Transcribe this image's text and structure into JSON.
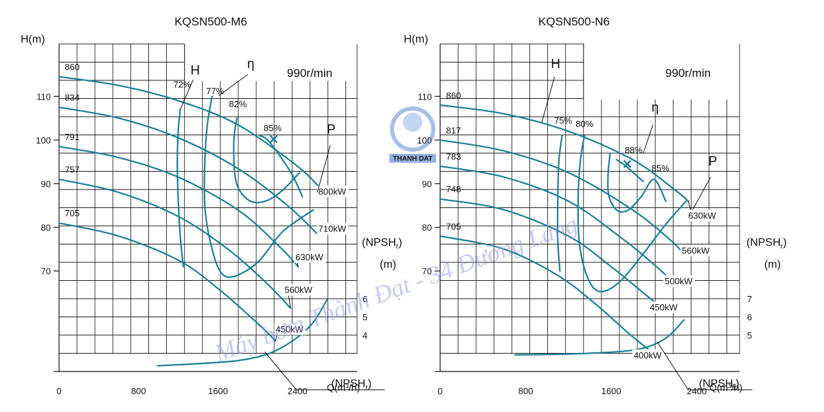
{
  "curve_color": "#1a7f99",
  "watermark": {
    "text": "Máy bơm Thành Đạt - 34 Đường Láng",
    "logo_text": "THANH DAT",
    "logo_color": "#3b73c9"
  },
  "chart_data": [
    {
      "type": "line",
      "title": "KQSN500-M6",
      "ylabel": "H(m)",
      "xlabel": "Q(m³/h)",
      "npsh_axis_label": "(NPSHr)",
      "npsh_unit": "(m)",
      "speed_label": "990r/min",
      "xlim": [
        0,
        3000
      ],
      "ylim": [
        47,
        122
      ],
      "x_ticks": [
        "0",
        "800",
        "1600",
        "2400"
      ],
      "y_ticks": [
        "70",
        "80",
        "90",
        "100",
        "110"
      ],
      "npsh_ticks": [
        "4",
        "5",
        "6"
      ],
      "head_curves": [
        {
          "name": "860",
          "points": [
            [
              0,
              114.5
            ],
            [
              600,
              112.5
            ],
            [
              1200,
              109
            ],
            [
              1800,
              103.5
            ],
            [
              2400,
              94
            ],
            [
              2650,
              88.5
            ]
          ]
        },
        {
          "name": "834",
          "points": [
            [
              0,
              107.5
            ],
            [
              600,
              105
            ],
            [
              1200,
              100.5
            ],
            [
              1800,
              93.5
            ],
            [
              2300,
              85
            ],
            [
              2600,
              78.5
            ]
          ]
        },
        {
          "name": "791",
          "points": [
            [
              0,
              98.5
            ],
            [
              600,
              96
            ],
            [
              1200,
              91.5
            ],
            [
              1800,
              84
            ],
            [
              2200,
              76
            ],
            [
              2410,
              71
            ]
          ]
        },
        {
          "name": "757",
          "points": [
            [
              0,
              91
            ],
            [
              600,
              88
            ],
            [
              1200,
              82.5
            ],
            [
              1700,
              75
            ],
            [
              2100,
              67
            ],
            [
              2330,
              61.5
            ]
          ]
        },
        {
          "name": "705",
          "points": [
            [
              0,
              81
            ],
            [
              600,
              78
            ],
            [
              1200,
              72.5
            ],
            [
              1600,
              66
            ],
            [
              2000,
              58
            ],
            [
              2180,
              54
            ]
          ]
        }
      ],
      "h_labels": [
        {
          "text": "860",
          "x": 30,
          "y": 116
        },
        {
          "text": "834",
          "x": 30,
          "y": 109
        },
        {
          "text": "791",
          "x": 30,
          "y": 100
        },
        {
          "text": "757",
          "x": 30,
          "y": 92.5
        },
        {
          "text": "705",
          "x": 30,
          "y": 82.5
        }
      ],
      "efficiency_curves": [
        {
          "name": "72%",
          "points": [
            [
              1220,
              107
            ],
            [
              1200,
              102
            ],
            [
              1190,
              95
            ],
            [
              1200,
              86
            ],
            [
              1220,
              78
            ],
            [
              1250,
              71
            ]
          ]
        },
        {
          "name": "77%",
          "points": [
            [
              1540,
              110
            ],
            [
              1490,
              103
            ],
            [
              1465,
              93
            ],
            [
              1470,
              84
            ],
            [
              1530,
              76
            ],
            [
              1620,
              70
            ],
            [
              1750,
              68.7
            ],
            [
              2000,
              72
            ],
            [
              2250,
              79
            ],
            [
              2560,
              84
            ]
          ]
        },
        {
          "name": "82%",
          "points": [
            [
              1790,
              105
            ],
            [
              1760,
              100
            ],
            [
              1770,
              92
            ],
            [
              1830,
              88
            ],
            [
              1950,
              85.8
            ],
            [
              2100,
              86.2
            ],
            [
              2250,
              88.5
            ],
            [
              2420,
              92.5
            ]
          ]
        },
        {
          "name": "85%",
          "points": [
            [
              2020,
              101
            ],
            [
              2100,
              100
            ],
            [
              2250,
              95.5
            ],
            [
              2360,
              91.5
            ],
            [
              2450,
              87
            ]
          ]
        }
      ],
      "eta_labels": [
        {
          "text": "72%",
          "x": 1240,
          "y": 112
        },
        {
          "text": "77%",
          "x": 1570,
          "y": 110.5
        },
        {
          "text": "82%",
          "x": 1800,
          "y": 107.5
        },
        {
          "text": "85%",
          "x": 2150,
          "y": 102
        }
      ],
      "best_efficiency_point": {
        "x": 2160,
        "y": 100.2
      },
      "power_labels": [
        {
          "text": "800kW",
          "x": 2610,
          "y": 87.5,
          "tx": 2650,
          "ty": 88.5
        },
        {
          "text": "710kW",
          "x": 2610,
          "y": 79,
          "tx": 2600,
          "ty": 78.5
        },
        {
          "text": "630kW",
          "x": 2380,
          "y": 72.5,
          "tx": 2400,
          "ty": 71
        },
        {
          "text": "560kW",
          "x": 2270,
          "y": 65,
          "tx": 2330,
          "ty": 61.5
        },
        {
          "text": "450kW",
          "x": 2180,
          "y": 56,
          "tx": 2180,
          "ty": 54
        }
      ],
      "curve_markers": [
        {
          "text": "H",
          "x": 1370,
          "y": 115,
          "line_from": [
            1350,
            113.8
          ],
          "line_to": [
            1220,
            107
          ]
        },
        {
          "text": "η",
          "x": 1930,
          "y": 116.5,
          "line_from": [
            1900,
            115
          ],
          "line_to": [
            1610,
            110.2
          ]
        },
        {
          "text": "P",
          "x": 2740,
          "y": 101.5,
          "line_from": [
            2730,
            98.8
          ],
          "line_to": [
            2600,
            88
          ]
        }
      ],
      "npsh_curve": {
        "name": "(NPSHr)",
        "points": [
          [
            990,
            48.3
          ],
          [
            1400,
            48.8
          ],
          [
            1800,
            49.5
          ],
          [
            2100,
            51
          ],
          [
            2350,
            54
          ],
          [
            2550,
            58
          ],
          [
            2700,
            63.5
          ]
        ]
      },
      "npsh_label": {
        "text": "(NPSHr)",
        "x": 2740,
        "y": 43.5,
        "from": [
          2070,
          51.5
        ],
        "via": [
          2390,
          42.8
        ]
      }
    },
    {
      "type": "line",
      "title": "KQSN500-N6",
      "ylabel": "H(m)",
      "xlabel": "Q(m³/h)",
      "npsh_axis_label": "(NPSHr)",
      "npsh_unit": "(m)",
      "speed_label": "990r/min",
      "xlim": [
        0,
        2800
      ],
      "ylim": [
        47,
        122
      ],
      "x_ticks": [
        "0",
        "800",
        "1600",
        "2400"
      ],
      "y_ticks": [
        "70",
        "80",
        "90",
        "100",
        "110"
      ],
      "npsh_ticks": [
        "5",
        "6",
        "7"
      ],
      "head_curves": [
        {
          "name": "860",
          "points": [
            [
              0,
              108
            ],
            [
              600,
              106
            ],
            [
              1200,
              102
            ],
            [
              1800,
              95.5
            ],
            [
              2200,
              88.5
            ],
            [
              2320,
              86
            ]
          ]
        },
        {
          "name": "817",
          "points": [
            [
              0,
              100
            ],
            [
              600,
              97.5
            ],
            [
              1200,
              92.5
            ],
            [
              1800,
              84
            ],
            [
              2180,
              76.5
            ],
            [
              2270,
              74
            ]
          ]
        },
        {
          "name": "783",
          "points": [
            [
              0,
              94
            ],
            [
              600,
              91.5
            ],
            [
              1200,
              86
            ],
            [
              1700,
              77.5
            ],
            [
              2000,
              71.5
            ],
            [
              2200,
              67
            ]
          ]
        },
        {
          "name": "748",
          "points": [
            [
              0,
              86.5
            ],
            [
              600,
              84
            ],
            [
              1200,
              78
            ],
            [
              1600,
              71
            ],
            [
              1900,
              65
            ],
            [
              2100,
              61
            ]
          ]
        },
        {
          "name": "705",
          "points": [
            [
              0,
              78
            ],
            [
              600,
              75
            ],
            [
              1100,
              69
            ],
            [
              1450,
              62.5
            ],
            [
              1750,
              56
            ],
            [
              1950,
              52
            ]
          ]
        }
      ],
      "h_labels": [
        {
          "text": "860",
          "x": 30,
          "y": 109.5
        },
        {
          "text": "817",
          "x": 30,
          "y": 101.5
        },
        {
          "text": "783",
          "x": 30,
          "y": 95.5
        },
        {
          "text": "748",
          "x": 30,
          "y": 88
        },
        {
          "text": "705",
          "x": 30,
          "y": 79.5
        }
      ],
      "efficiency_curves": [
        {
          "name": "75%",
          "points": [
            [
              1140,
              101
            ],
            [
              1110,
              95
            ],
            [
              1100,
              86
            ],
            [
              1100,
              77
            ],
            [
              1120,
              70
            ]
          ]
        },
        {
          "name": "80%",
          "points": [
            [
              1350,
              101
            ],
            [
              1310,
              95
            ],
            [
              1290,
              86
            ],
            [
              1300,
              77
            ],
            [
              1350,
              70.5
            ],
            [
              1440,
              66
            ],
            [
              1550,
              65.5
            ],
            [
              1700,
              68
            ],
            [
              1900,
              74
            ],
            [
              2120,
              81
            ],
            [
              2300,
              86
            ]
          ]
        },
        {
          "name": "85%",
          "points": [
            [
              1590,
              97
            ],
            [
              1570,
              92
            ],
            [
              1580,
              87
            ],
            [
              1660,
              83.8
            ],
            [
              1760,
              84
            ],
            [
              1880,
              87
            ],
            [
              2000,
              91
            ],
            [
              2110,
              86
            ]
          ]
        },
        {
          "name": "88%",
          "points": [
            [
              1650,
              95.5
            ],
            [
              1740,
              94
            ],
            [
              1830,
              92
            ],
            [
              1900,
              90.5
            ]
          ]
        }
      ],
      "eta_labels": [
        {
          "text": "75%",
          "x": 1150,
          "y": 103.8
        },
        {
          "text": "80%",
          "x": 1350,
          "y": 103
        },
        {
          "text": "88%",
          "x": 1810,
          "y": 97
        },
        {
          "text": "85%",
          "x": 2060,
          "y": 92.8
        }
      ],
      "best_efficiency_point": {
        "x": 1750,
        "y": 94.5
      },
      "power_labels": [
        {
          "text": "630kW",
          "x": 2320,
          "y": 82,
          "tx": 2320,
          "ty": 86
        },
        {
          "text": "560kW",
          "x": 2260,
          "y": 74,
          "tx": 2270,
          "ty": 74
        },
        {
          "text": "500kW",
          "x": 2100,
          "y": 67,
          "tx": 2200,
          "ty": 67
        },
        {
          "text": "450kW",
          "x": 1960,
          "y": 61,
          "tx": 2100,
          "ty": 61
        },
        {
          "text": "400kW",
          "x": 1810,
          "y": 50,
          "tx": 1950,
          "ty": 52
        }
      ],
      "curve_markers": [
        {
          "text": "H",
          "x": 1080,
          "y": 116.5,
          "line_from": [
            1070,
            114.5
          ],
          "line_to": [
            950,
            104
          ]
        },
        {
          "text": "η",
          "x": 2010,
          "y": 106.5,
          "line_from": [
            1990,
            103.5
          ],
          "line_to": [
            1900,
            97
          ]
        },
        {
          "text": "P",
          "x": 2550,
          "y": 94.2,
          "line_from": [
            2530,
            91.5
          ],
          "line_to": [
            2360,
            84
          ]
        }
      ],
      "npsh_curve": {
        "name": "(NPSHr)",
        "points": [
          [
            700,
            50.8
          ],
          [
            1200,
            51
          ],
          [
            1700,
            51.6
          ],
          [
            1950,
            52.7
          ],
          [
            2130,
            55
          ],
          [
            2280,
            58.8
          ]
        ]
      },
      "npsh_label": {
        "text": "(NPSHr)",
        "x": 2420,
        "y": 43.5,
        "from": [
          2030,
          53.8
        ],
        "via": [
          2320,
          42.8
        ]
      }
    }
  ]
}
